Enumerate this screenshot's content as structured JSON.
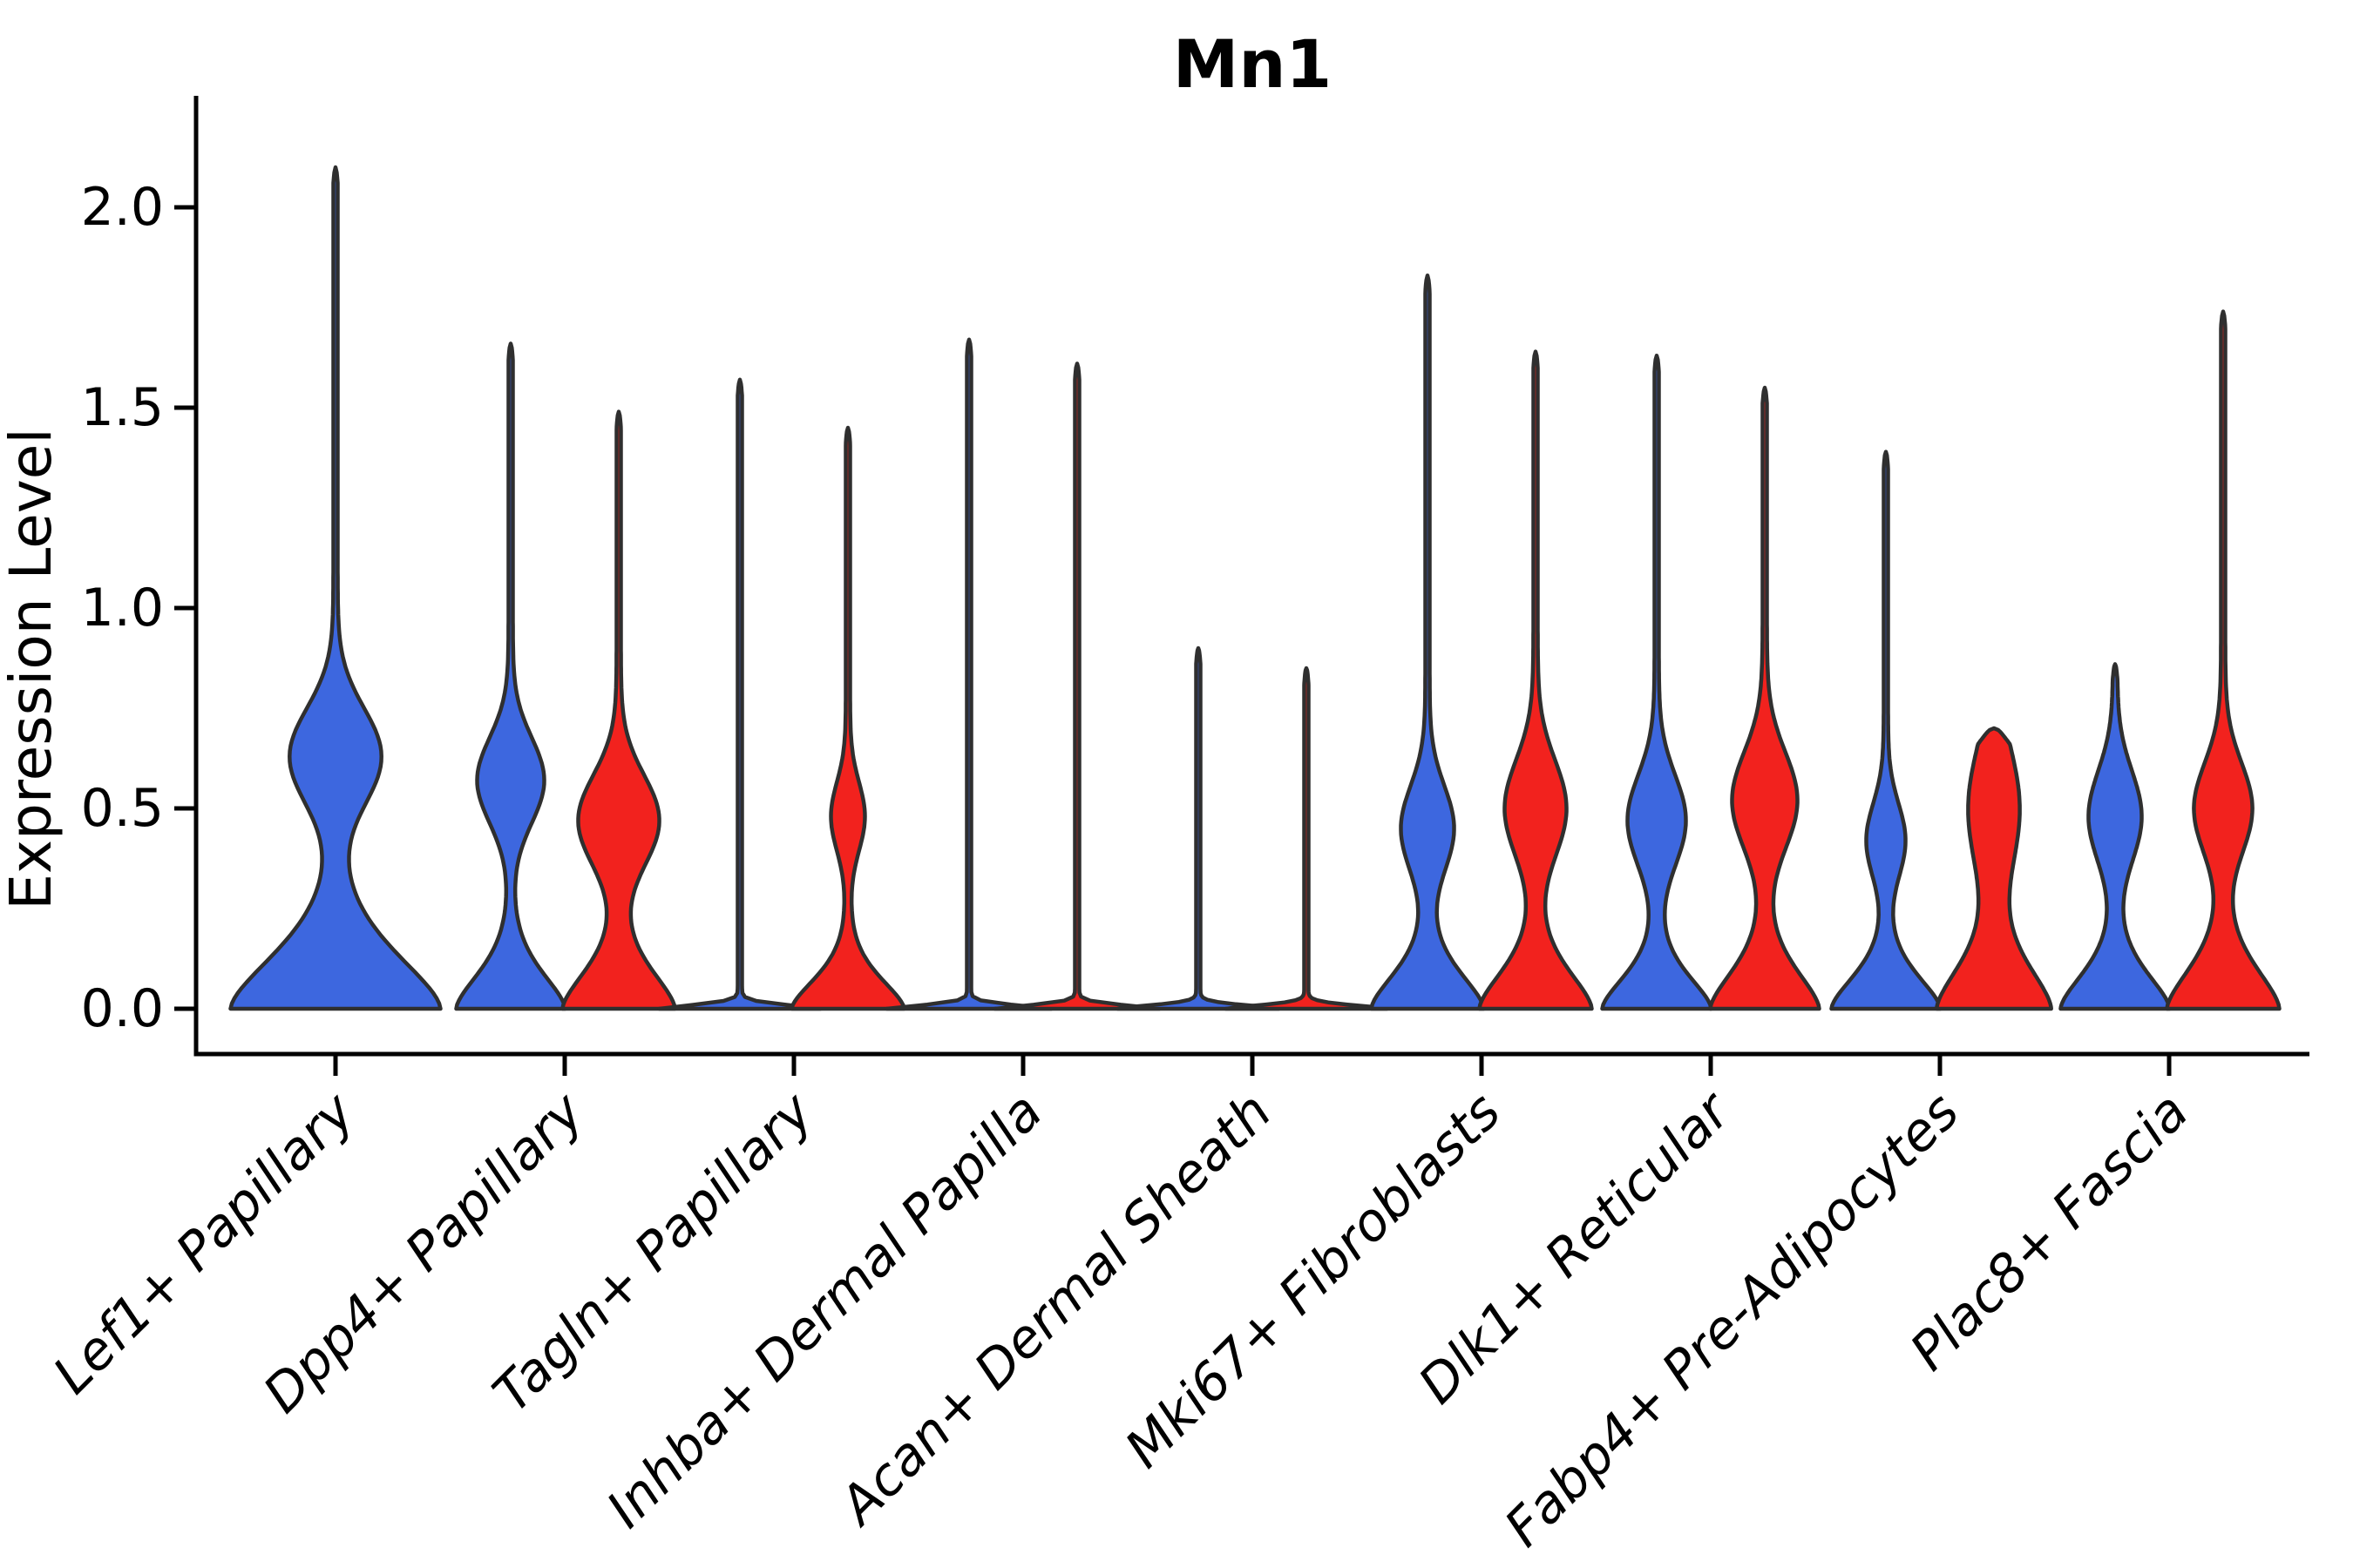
{
  "title": "Mn1",
  "y_axis": {
    "label": "Expression Level",
    "tick_labels": [
      "0.0",
      "0.5",
      "1.0",
      "1.5",
      "2.0"
    ],
    "tick_values": [
      0.0,
      0.5,
      1.0,
      1.5,
      2.0
    ],
    "limits": [
      -0.11,
      2.28
    ]
  },
  "colors": {
    "blue": "#3D67DF",
    "red": "#F2221E",
    "outline": "#2F2F2F",
    "axis": "#000000",
    "background": "#FFFFFF"
  },
  "chart_data": {
    "type": "violin",
    "title": "Mn1",
    "xlabel": "",
    "ylabel": "Expression Level",
    "ylim": [
      -0.11,
      2.28
    ],
    "grid": false,
    "legend_position": "none",
    "categories": [
      "Lef1+ Papillary",
      "Dpp4+ Papillary",
      "Tagln+ Papillary",
      "Inhba+ Dermal Papilla",
      "Acan+ Dermal Sheath",
      "Mki67+ Fibroblasts",
      "Dlk1+ Reticular",
      "Fabp4+ Pre-Adipocytes",
      "Plac8+ Fascia"
    ],
    "series": [
      {
        "name": "blue (left violin)",
        "color_key": "blue",
        "max_expression": [
          2.1,
          1.66,
          1.57,
          1.67,
          0.9,
          1.83,
          1.63,
          1.39,
          0.86
        ]
      },
      {
        "name": "red (right violin)",
        "color_key": "red",
        "max_expression": [
          null,
          1.49,
          1.45,
          1.61,
          0.85,
          1.64,
          1.55,
          0.7,
          1.74
        ]
      }
    ],
    "violins": [
      {
        "category": "Lef1+ Papillary",
        "color_key": "blue",
        "offset": 0,
        "top": 2.1,
        "base_hw": 118,
        "base_scale": 0.2,
        "bulge_c": 0.63,
        "bulge_s": 0.17,
        "bulge_hw": 50,
        "spike_hw": 2.5
      },
      {
        "category": "Dpp4+ Papillary",
        "color_key": "blue",
        "offset": -62,
        "top": 1.66,
        "base_hw": 60,
        "base_scale": 0.13,
        "bulge_c": 0.57,
        "bulge_s": 0.15,
        "bulge_hw": 36,
        "spike_hw": 2.5
      },
      {
        "category": "Dpp4+ Papillary",
        "color_key": "red",
        "offset": 62,
        "top": 1.49,
        "base_hw": 62,
        "base_scale": 0.14,
        "bulge_c": 0.47,
        "bulge_s": 0.16,
        "bulge_hw": 44,
        "spike_hw": 2.5
      },
      {
        "category": "Tagln+ Papillary",
        "color_key": "blue",
        "offset": -62,
        "top": 1.57,
        "base_hw": 90,
        "base_scale": 0.014,
        "bulge_c": 0.0,
        "bulge_s": 1.0,
        "bulge_hw": 0,
        "spike_hw": 2.5
      },
      {
        "category": "Tagln+ Papillary",
        "color_key": "red",
        "offset": 62,
        "top": 1.45,
        "base_hw": 62,
        "base_scale": 0.11,
        "bulge_c": 0.48,
        "bulge_s": 0.12,
        "bulge_hw": 17,
        "spike_hw": 2.5
      },
      {
        "category": "Inhba+ Dermal Papilla",
        "color_key": "blue",
        "offset": -62,
        "top": 1.67,
        "base_hw": 92,
        "base_scale": 0.013,
        "bulge_c": 0.0,
        "bulge_s": 1.0,
        "bulge_hw": 0,
        "spike_hw": 2.5
      },
      {
        "category": "Inhba+ Dermal Papilla",
        "color_key": "red",
        "offset": 62,
        "top": 1.61,
        "base_hw": 92,
        "base_scale": 0.013,
        "bulge_c": 0.0,
        "bulge_s": 1.0,
        "bulge_hw": 0,
        "spike_hw": 2.5
      },
      {
        "category": "Acan+ Dermal Sheath",
        "color_key": "blue",
        "offset": -62,
        "top": 0.9,
        "base_hw": 90,
        "base_scale": 0.013,
        "bulge_c": 0.0,
        "bulge_s": 1.0,
        "bulge_hw": 0,
        "spike_hw": 2.5
      },
      {
        "category": "Acan+ Dermal Sheath",
        "color_key": "red",
        "offset": 62,
        "top": 0.85,
        "base_hw": 90,
        "base_scale": 0.013,
        "bulge_c": 0.0,
        "bulge_s": 1.0,
        "bulge_hw": 0,
        "spike_hw": 2.5
      },
      {
        "category": "Mki67+ Fibroblasts",
        "color_key": "blue",
        "offset": -62,
        "top": 1.83,
        "base_hw": 62,
        "base_scale": 0.13,
        "bulge_c": 0.45,
        "bulge_s": 0.15,
        "bulge_hw": 28,
        "spike_hw": 2.5
      },
      {
        "category": "Mki67+ Fibroblasts",
        "color_key": "red",
        "offset": 62,
        "top": 1.64,
        "base_hw": 62,
        "base_scale": 0.14,
        "bulge_c": 0.5,
        "bulge_s": 0.17,
        "bulge_hw": 33,
        "spike_hw": 2.5
      },
      {
        "category": "Dlk1+ Reticular",
        "color_key": "blue",
        "offset": -62,
        "top": 1.63,
        "base_hw": 60,
        "base_scale": 0.12,
        "bulge_c": 0.47,
        "bulge_s": 0.16,
        "bulge_hw": 31,
        "spike_hw": 2.5
      },
      {
        "category": "Dlk1+ Reticular",
        "color_key": "red",
        "offset": 62,
        "top": 1.55,
        "base_hw": 60,
        "base_scale": 0.14,
        "bulge_c": 0.52,
        "bulge_s": 0.17,
        "bulge_hw": 35,
        "spike_hw": 2.5
      },
      {
        "category": "Fabp4+ Pre-Adipocytes",
        "color_key": "blue",
        "offset": -62,
        "top": 1.39,
        "base_hw": 60,
        "base_scale": 0.12,
        "bulge_c": 0.42,
        "bulge_s": 0.13,
        "bulge_hw": 20,
        "spike_hw": 2.5
      },
      {
        "category": "Fabp4+ Pre-Adipocytes",
        "color_key": "red",
        "offset": 62,
        "top": 0.7,
        "base_hw": 63,
        "base_scale": 0.16,
        "bulge_c": 0.5,
        "bulge_s": 0.22,
        "bulge_hw": 27,
        "spike_hw": 2.5
      },
      {
        "category": "Plac8+ Fascia",
        "color_key": "blue",
        "offset": -62,
        "top": 0.86,
        "base_hw": 60,
        "base_scale": 0.13,
        "bulge_c": 0.48,
        "bulge_s": 0.16,
        "bulge_hw": 28,
        "spike_hw": 2.5
      },
      {
        "category": "Plac8+ Fascia",
        "color_key": "red",
        "offset": 62,
        "top": 1.74,
        "base_hw": 62,
        "base_scale": 0.15,
        "bulge_c": 0.5,
        "bulge_s": 0.16,
        "bulge_hw": 31,
        "spike_hw": 2.5
      }
    ]
  }
}
